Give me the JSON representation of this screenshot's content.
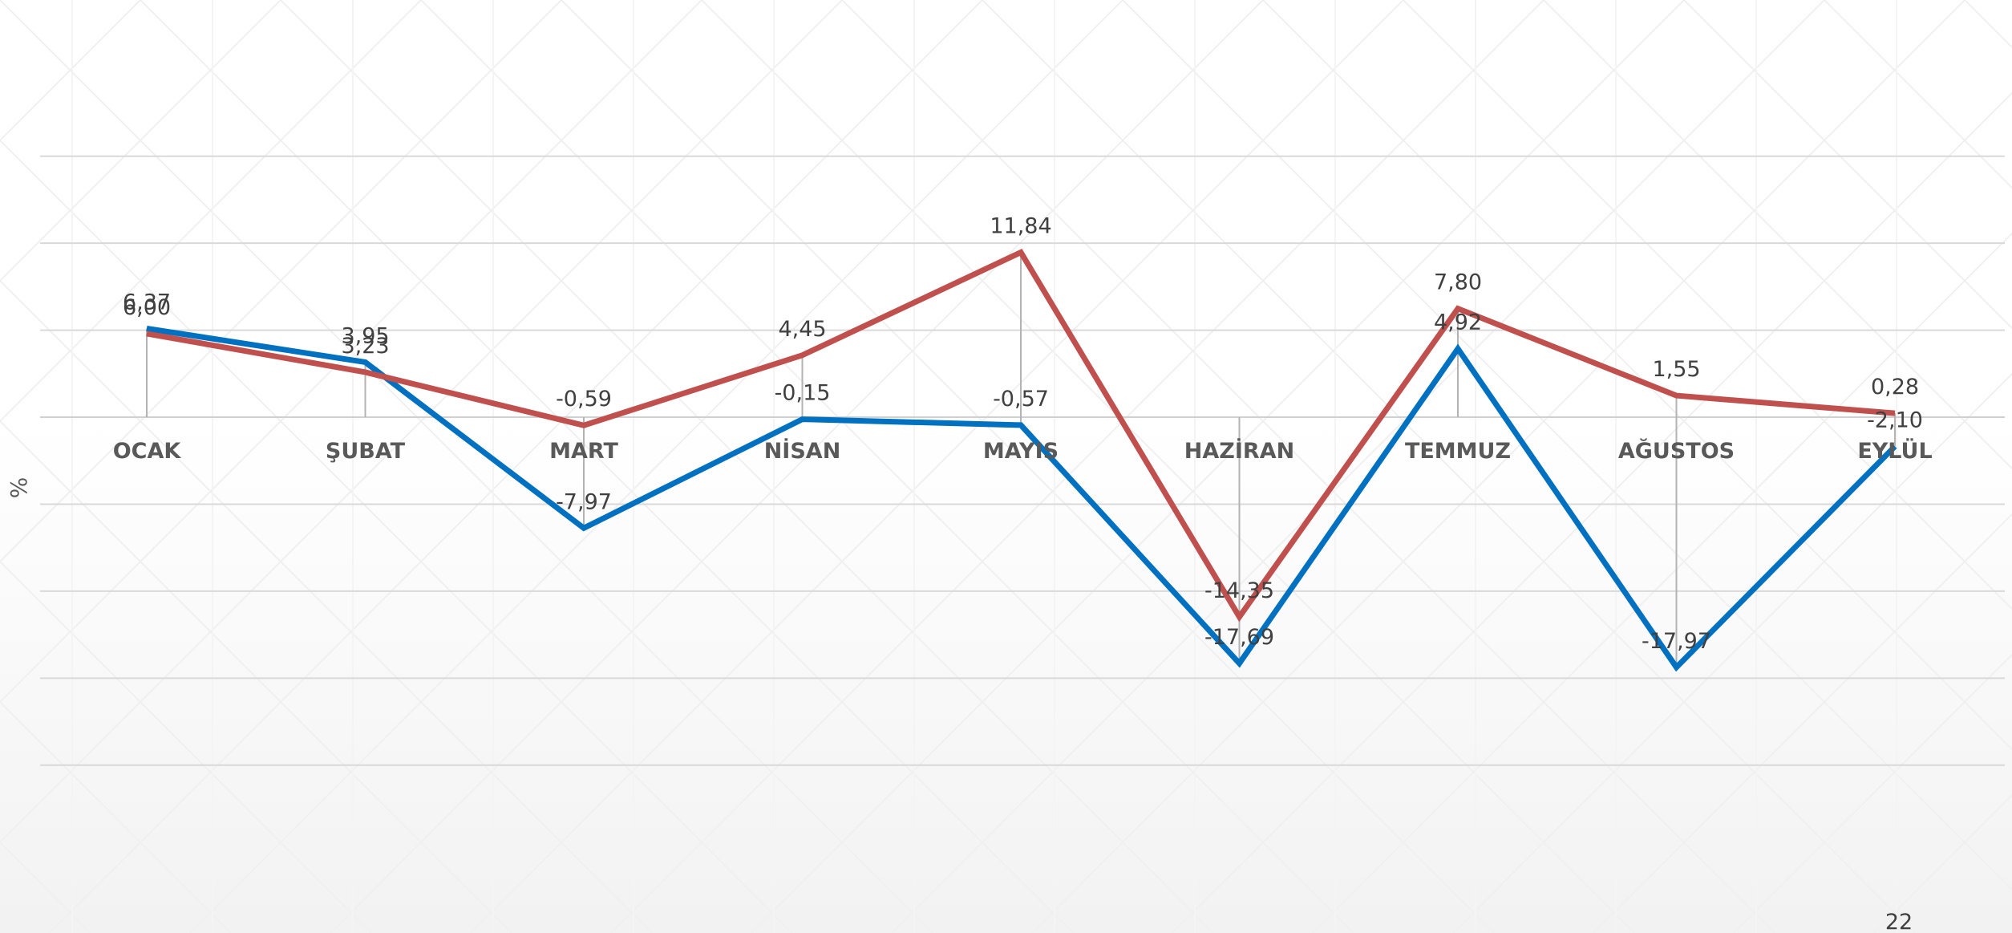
{
  "chart_data": {
    "type": "line",
    "ylabel": "%",
    "categories": [
      "OCAK",
      "ŞUBAT",
      "MART",
      "NİSAN",
      "MAYIS",
      "HAZİRAN",
      "TEMMUZ",
      "AĞUSTOS",
      "EYLÜL"
    ],
    "ylim": [
      -18,
      15
    ],
    "grid": true,
    "legend": "none",
    "series": [
      {
        "color": "#0070C0",
        "values": [
          6.37,
          3.95,
          -7.97,
          -0.15,
          -0.57,
          -17.69,
          4.92,
          -17.97,
          -2.1
        ],
        "labels": [
          "6,37",
          "3,95",
          "-7,97",
          "-0,15",
          "-0,57",
          "-17,69",
          "4,92",
          "-17,97",
          "-2,10"
        ]
      },
      {
        "color": "#C0504D",
        "values": [
          6.0,
          3.23,
          -0.59,
          4.45,
          11.84,
          -14.35,
          7.8,
          1.55,
          0.28
        ],
        "labels": [
          "6,00",
          "3,23",
          "-0,59",
          "4,45",
          "11,84",
          "-14,35",
          "7,80",
          "1,55",
          "0,28"
        ]
      }
    ],
    "footer_label": "22"
  }
}
